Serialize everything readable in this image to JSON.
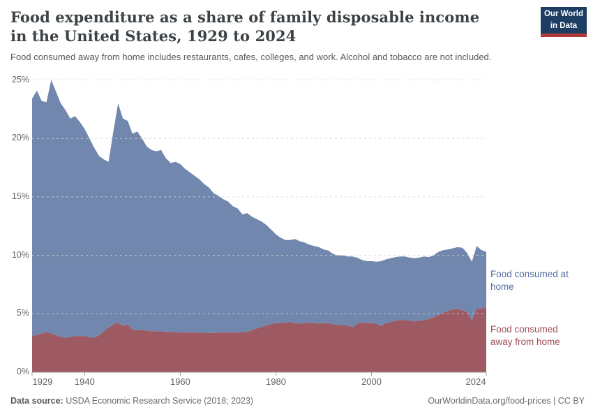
{
  "header": {
    "logo": {
      "line1": "Our World",
      "line2": "in Data"
    }
  },
  "chart_data": {
    "type": "area",
    "stacked": true,
    "title": "Food expenditure as a share of family disposable income in the United States, 1929 to 2024",
    "subtitle": "Food consumed away from home includes restaurants, cafes, colleges, and work. Alcohol and tobacco are not included.",
    "years": {
      "start": 1929,
      "end": 2024
    },
    "ylim": [
      0,
      25
    ],
    "y_ticks": [
      "0%",
      "5%",
      "10%",
      "15%",
      "20%",
      "25%"
    ],
    "x_tick_years": [
      1929,
      1940,
      1960,
      1980,
      2000,
      2024
    ],
    "grid": "dashed horizontal",
    "legend_position": "right-of-plot",
    "series": [
      {
        "name": "Food consumed away from home",
        "color": "#9e5a63",
        "label_color": "#a04d57",
        "values": [
          3.1,
          3.2,
          3.3,
          3.45,
          3.3,
          3.15,
          3.0,
          2.95,
          3.0,
          3.1,
          3.1,
          3.1,
          3.0,
          2.95,
          3.15,
          3.5,
          3.8,
          4.1,
          4.25,
          3.95,
          4.1,
          3.65,
          3.6,
          3.6,
          3.55,
          3.5,
          3.5,
          3.5,
          3.45,
          3.45,
          3.45,
          3.4,
          3.4,
          3.4,
          3.4,
          3.4,
          3.35,
          3.35,
          3.35,
          3.4,
          3.4,
          3.4,
          3.4,
          3.4,
          3.45,
          3.45,
          3.6,
          3.75,
          3.85,
          4.0,
          4.1,
          4.2,
          4.2,
          4.25,
          4.3,
          4.2,
          4.15,
          4.2,
          4.25,
          4.2,
          4.15,
          4.2,
          4.2,
          4.1,
          4.05,
          4.05,
          4.0,
          3.85,
          4.15,
          4.25,
          4.2,
          4.2,
          4.15,
          3.95,
          4.2,
          4.3,
          4.4,
          4.45,
          4.45,
          4.4,
          4.35,
          4.4,
          4.45,
          4.55,
          4.7,
          4.9,
          5.1,
          5.25,
          5.35,
          5.4,
          5.3,
          5.15,
          4.4,
          5.4,
          5.45,
          5.55
        ]
      },
      {
        "name": "Food consumed at home",
        "color": "#7287ad",
        "label_color": "#4f6da3",
        "values": [
          20.3,
          20.9,
          19.9,
          19.65,
          21.7,
          20.85,
          20.0,
          19.45,
          18.7,
          18.8,
          18.3,
          17.7,
          17.0,
          16.25,
          15.35,
          14.7,
          14.2,
          16.5,
          18.75,
          17.75,
          17.4,
          16.75,
          17.0,
          16.4,
          15.75,
          15.5,
          15.4,
          15.5,
          14.85,
          14.45,
          14.55,
          14.4,
          14.0,
          13.7,
          13.4,
          13.1,
          12.75,
          12.45,
          11.95,
          11.7,
          11.4,
          11.2,
          10.8,
          10.6,
          10.05,
          10.15,
          9.7,
          9.35,
          9.05,
          8.6,
          8.1,
          7.6,
          7.3,
          7.05,
          7.0,
          7.2,
          7.05,
          6.9,
          6.65,
          6.6,
          6.55,
          6.3,
          6.2,
          6.0,
          5.95,
          5.95,
          5.9,
          6.05,
          5.65,
          5.35,
          5.3,
          5.3,
          5.3,
          5.55,
          5.45,
          5.45,
          5.45,
          5.45,
          5.45,
          5.4,
          5.4,
          5.4,
          5.45,
          5.3,
          5.3,
          5.4,
          5.35,
          5.25,
          5.25,
          5.3,
          5.35,
          5.05,
          5.05,
          5.4,
          5.0,
          4.75
        ]
      }
    ]
  },
  "footer": {
    "source_label": "Data source:",
    "source_text": "USDA Economic Research Service (2018; 2023)",
    "link_text": "OurWorldinData.org/food-prices",
    "separator": "|",
    "license": "CC BY"
  }
}
